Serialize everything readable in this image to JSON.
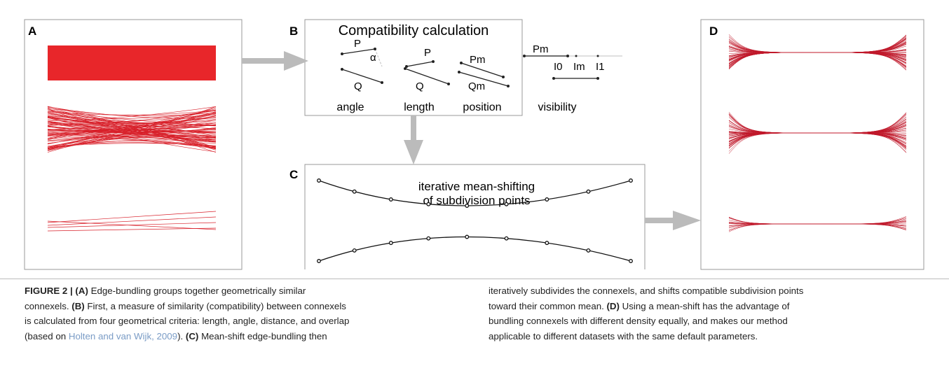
{
  "figure": {
    "panels": [
      {
        "label": "A"
      },
      {
        "label": "B",
        "title": "Compatibility calculation",
        "symbols": {
          "p": "P",
          "alpha": "α",
          "q": "Q",
          "pm": "Pm",
          "qm": "Qm",
          "i0": "I0",
          "im": "Im",
          "i1": "I1"
        },
        "criteria": [
          "angle",
          "length",
          "position",
          "visibility"
        ]
      },
      {
        "label": "C",
        "text": [
          "iterative mean-shifting",
          "of subdivision points"
        ]
      },
      {
        "label": "D"
      }
    ]
  },
  "caption": {
    "columns": [
      [
        [
          "FIGURE 2 | (A)",
          " Edge-bundling groups together geometrically similar"
        ],
        [
          "connexels. ",
          "(B)",
          " First, a measure of similarity (compatibility) between connexels"
        ],
        [
          "is calculated from four geometrical criteria: length, angle, distance, and overlap"
        ],
        [
          "(based on ",
          "Holten and van Wijk, 2009",
          "). ",
          "(C)",
          " Mean-shift edge-bundling then"
        ]
      ],
      [
        [
          "iteratively subdivides the connexels, and shifts compatible subdivision points"
        ],
        [
          "toward their common mean. ",
          "(D)",
          " Using a mean-shift has the advantage of"
        ],
        [
          "bundling connexels with different density equally, and makes our method"
        ],
        [
          "applicable to different datasets with the same default parameters."
        ]
      ]
    ]
  }
}
